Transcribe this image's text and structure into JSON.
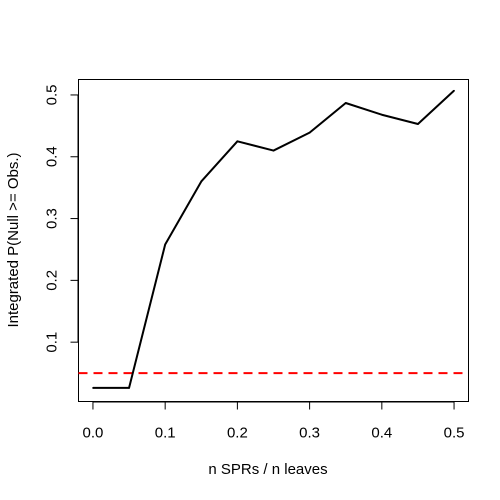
{
  "chart_data": {
    "type": "line",
    "title": "",
    "xlabel": "n SPRs / n leaves",
    "ylabel": "Integrated P(Null >= Obs.)",
    "xlim": [
      -0.02,
      0.52
    ],
    "ylim": [
      0.004,
      0.525
    ],
    "x_ticks": [
      0.0,
      0.1,
      0.2,
      0.3,
      0.4,
      0.5
    ],
    "x_tick_labels": [
      "0.0",
      "0.1",
      "0.2",
      "0.3",
      "0.4",
      "0.5"
    ],
    "y_ticks": [
      0.1,
      0.2,
      0.3,
      0.4,
      0.5
    ],
    "y_tick_labels": [
      "0.1",
      "0.2",
      "0.3",
      "0.4",
      "0.5"
    ],
    "grid": false,
    "series": [
      {
        "x": [
          0.0,
          0.05,
          0.1,
          0.15,
          0.2,
          0.25,
          0.3,
          0.35,
          0.4,
          0.45,
          0.5
        ],
        "values": [
          0.026,
          0.026,
          0.258,
          0.36,
          0.425,
          0.41,
          0.439,
          0.487,
          0.468,
          0.453,
          0.507
        ],
        "color": "#000000"
      }
    ],
    "reference_lines": [
      {
        "orientation": "horizontal",
        "y": 0.05,
        "color": "#ff0000",
        "style": "dashed"
      }
    ]
  }
}
